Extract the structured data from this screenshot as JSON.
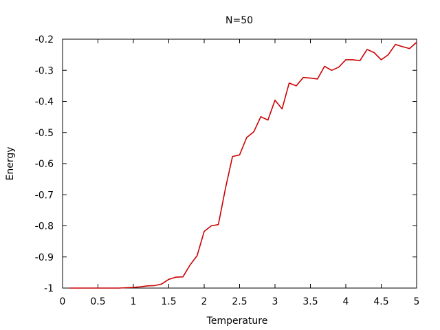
{
  "chart_data": {
    "type": "line",
    "title": "N=50",
    "xlabel": "Temperature",
    "ylabel": "Energy",
    "xlim": [
      0,
      5
    ],
    "ylim": [
      -1,
      -0.2
    ],
    "grid": false,
    "legend": "none",
    "x_ticks": [
      "0",
      "0.5",
      "1",
      "1.5",
      "2",
      "2.5",
      "3",
      "3.5",
      "4",
      "4.5",
      "5"
    ],
    "y_ticks": [
      "-0.2",
      "-0.3",
      "-0.4",
      "-0.5",
      "-0.6",
      "-0.7",
      "-0.8",
      "-0.9",
      "-1"
    ],
    "series_color": "#cc0000",
    "series": [
      {
        "x": [
          0.1,
          0.2,
          0.3,
          0.4,
          0.5,
          0.6,
          0.7,
          0.8,
          0.9,
          1.0,
          1.1,
          1.2,
          1.3,
          1.4,
          1.5,
          1.6,
          1.7,
          1.8,
          1.9,
          2.0,
          2.1,
          2.2,
          2.3,
          2.4,
          2.5,
          2.6,
          2.7,
          2.8,
          2.9,
          3.0,
          3.1,
          3.2,
          3.3,
          3.4,
          3.5,
          3.6,
          3.7,
          3.8,
          3.9,
          4.0,
          4.1,
          4.2,
          4.3,
          4.4,
          4.5,
          4.6,
          4.7,
          4.8,
          4.9,
          5.0
        ],
        "values": [
          -1.0,
          -1.0,
          -1.0,
          -1.0,
          -1.0,
          -1.0,
          -1.0,
          -1.0,
          -0.999,
          -0.998,
          -0.996,
          -0.993,
          -0.992,
          -0.987,
          -0.972,
          -0.965,
          -0.964,
          -0.926,
          -0.896,
          -0.818,
          -0.8,
          -0.796,
          -0.68,
          -0.577,
          -0.572,
          -0.516,
          -0.498,
          -0.449,
          -0.46,
          -0.396,
          -0.424,
          -0.341,
          -0.35,
          -0.323,
          -0.325,
          -0.328,
          -0.287,
          -0.3,
          -0.29,
          -0.266,
          -0.266,
          -0.269,
          -0.233,
          -0.243,
          -0.266,
          -0.25,
          -0.217,
          -0.224,
          -0.23,
          -0.21
        ]
      }
    ]
  }
}
